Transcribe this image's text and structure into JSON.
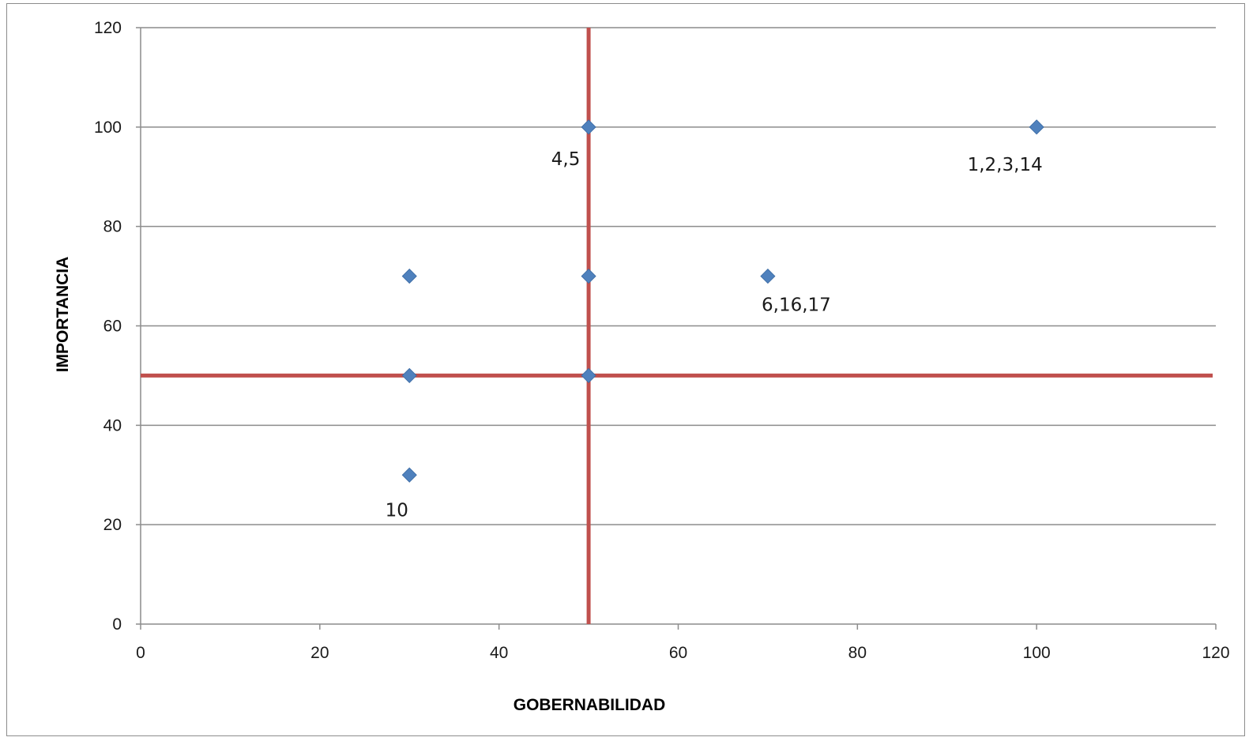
{
  "chart_data": {
    "type": "scatter",
    "title": "",
    "xlabel": "GOBERNABILIDAD",
    "ylabel": "IMPORTANCIA",
    "xlim": [
      0,
      120
    ],
    "ylim": [
      0,
      120
    ],
    "x_ticks": [
      "0",
      "20",
      "40",
      "60",
      "80",
      "100",
      "120"
    ],
    "y_ticks": [
      "0",
      "20",
      "40",
      "60",
      "80",
      "100",
      "120"
    ],
    "grid": "horizontal",
    "legend": "none",
    "series": [
      {
        "points": [
          {
            "x": 50,
            "y": 100,
            "label": "4,5"
          },
          {
            "x": 100,
            "y": 100,
            "label": "1,2,3,14"
          },
          {
            "x": 30,
            "y": 70,
            "label": ""
          },
          {
            "x": 50,
            "y": 70,
            "label": ""
          },
          {
            "x": 70,
            "y": 70,
            "label": "6,16,17"
          },
          {
            "x": 30,
            "y": 50,
            "label": ""
          },
          {
            "x": 50,
            "y": 50,
            "label": ""
          },
          {
            "x": 30,
            "y": 30,
            "label": "10"
          }
        ]
      }
    ],
    "reference_lines": [
      {
        "orientation": "vertical",
        "value": 50
      },
      {
        "orientation": "horizontal",
        "value": 50
      }
    ],
    "colors": {
      "marker": "#4f81bd",
      "reference_line": "#c0504d",
      "grid": "#8c8c8c",
      "axis": "#8c8c8c"
    }
  }
}
